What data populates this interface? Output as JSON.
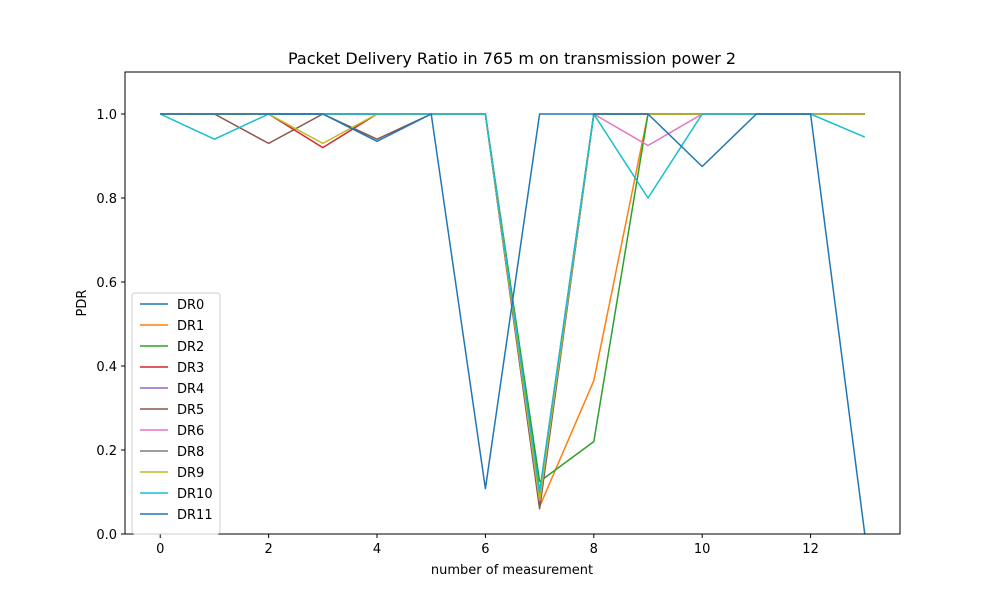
{
  "chart_data": {
    "type": "line",
    "title": "Packet Delivery Ratio in 765 m on transmission power 2",
    "xlabel": "number of measurement",
    "ylabel": "PDR",
    "x": [
      0,
      1,
      2,
      3,
      4,
      5,
      6,
      7,
      8,
      9,
      10,
      11,
      12,
      13
    ],
    "xlim": [
      -0.65,
      13.65
    ],
    "ylim": [
      0.0,
      1.1
    ],
    "xticks": [
      0,
      2,
      4,
      6,
      8,
      10,
      12
    ],
    "yticks": [
      0.0,
      0.2,
      0.4,
      0.6,
      0.8,
      1.0
    ],
    "xtick_labels": [
      "0",
      "2",
      "4",
      "6",
      "8",
      "10",
      "12"
    ],
    "ytick_labels": [
      "0.0",
      "0.2",
      "0.4",
      "0.6",
      "0.8",
      "1.0"
    ],
    "grid": false,
    "legend_position": "lower-left",
    "series": [
      {
        "name": "DR0",
        "color": "#1f77b4",
        "values": [
          1.0,
          1.0,
          1.0,
          1.0,
          1.0,
          1.0,
          1.0,
          0.1,
          1.0,
          1.0,
          1.0,
          1.0,
          1.0,
          1.0
        ]
      },
      {
        "name": "DR1",
        "color": "#ff7f0e",
        "values": [
          1.0,
          1.0,
          1.0,
          1.0,
          1.0,
          1.0,
          1.0,
          0.065,
          0.365,
          1.0,
          1.0,
          1.0,
          1.0,
          1.0
        ]
      },
      {
        "name": "DR2",
        "color": "#2ca02c",
        "values": [
          1.0,
          1.0,
          1.0,
          1.0,
          1.0,
          1.0,
          1.0,
          0.125,
          0.22,
          1.0,
          1.0,
          1.0,
          1.0,
          1.0
        ]
      },
      {
        "name": "DR3",
        "color": "#d62728",
        "values": [
          1.0,
          1.0,
          1.0,
          0.92,
          1.0,
          1.0,
          1.0,
          0.065,
          1.0,
          1.0,
          1.0,
          1.0,
          1.0,
          1.0
        ]
      },
      {
        "name": "DR4",
        "color": "#9467bd",
        "values": [
          1.0,
          1.0,
          1.0,
          1.0,
          1.0,
          1.0,
          1.0,
          0.07,
          1.0,
          1.0,
          1.0,
          1.0,
          1.0,
          1.0
        ]
      },
      {
        "name": "DR5",
        "color": "#8c564b",
        "values": [
          1.0,
          1.0,
          0.93,
          1.0,
          0.94,
          1.0,
          1.0,
          0.06,
          1.0,
          1.0,
          1.0,
          1.0,
          1.0,
          1.0
        ]
      },
      {
        "name": "DR6",
        "color": "#e377c2",
        "values": [
          1.0,
          1.0,
          1.0,
          1.0,
          1.0,
          1.0,
          1.0,
          0.08,
          1.0,
          0.925,
          1.0,
          1.0,
          1.0,
          1.0
        ]
      },
      {
        "name": "DR8",
        "color": "#7f7f7f",
        "values": [
          1.0,
          1.0,
          1.0,
          1.0,
          1.0,
          1.0,
          1.0,
          0.09,
          1.0,
          1.0,
          1.0,
          1.0,
          1.0,
          1.0
        ]
      },
      {
        "name": "DR9",
        "color": "#bcbd22",
        "values": [
          1.0,
          1.0,
          1.0,
          0.93,
          1.0,
          1.0,
          1.0,
          0.08,
          1.0,
          1.0,
          1.0,
          1.0,
          1.0,
          1.0
        ]
      },
      {
        "name": "DR10",
        "color": "#17becf",
        "values": [
          1.0,
          0.94,
          1.0,
          1.0,
          1.0,
          1.0,
          1.0,
          0.1,
          1.0,
          0.8,
          1.0,
          1.0,
          1.0,
          0.945
        ]
      },
      {
        "name": "DR11",
        "color": "#1f77b4",
        "values": [
          1.0,
          1.0,
          1.0,
          1.0,
          0.935,
          1.0,
          0.108,
          1.0,
          1.0,
          1.0,
          0.875,
          1.0,
          1.0,
          0.0
        ]
      }
    ]
  }
}
